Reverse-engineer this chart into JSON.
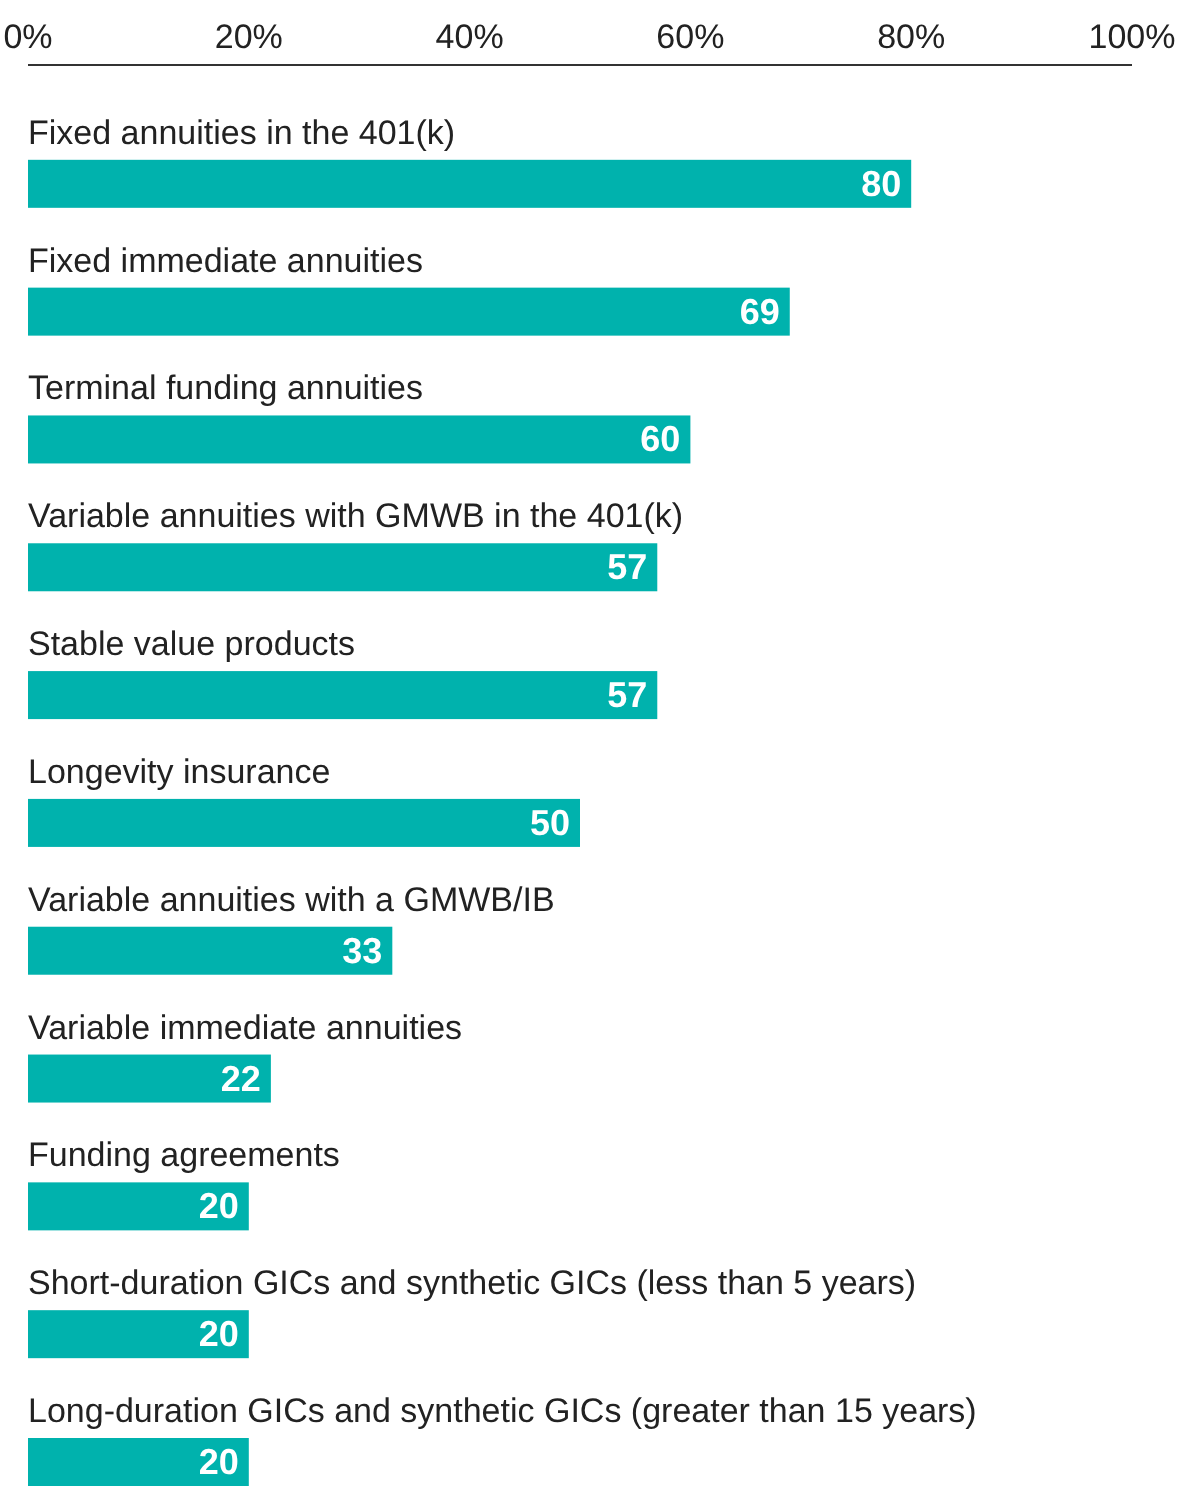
{
  "chart_data": {
    "type": "bar",
    "orientation": "horizontal",
    "categories": [
      "Fixed annuities in the 401(k)",
      "Fixed immediate annuities",
      "Terminal funding annuities",
      "Variable annuities with GMWB in the 401(k)",
      "Stable value products",
      "Longevity insurance",
      "Variable annuities with a GMWB/IB",
      "Variable immediate annuities",
      "Funding agreements",
      "Short-duration GICs and synthetic GICs (less than 5 years)",
      "Long-duration GICs and synthetic GICs (greater than 15 years)"
    ],
    "values": [
      80,
      69,
      60,
      57,
      57,
      50,
      33,
      22,
      20,
      20,
      20
    ],
    "color": "#00b2ad",
    "xlim": [
      0,
      100
    ],
    "xticks": [
      {
        "value": 0,
        "label": "0%"
      },
      {
        "value": 20,
        "label": "20%"
      },
      {
        "value": 40,
        "label": "40%"
      },
      {
        "value": 60,
        "label": "60%"
      },
      {
        "value": 80,
        "label": "80%"
      },
      {
        "value": 100,
        "label": "100%"
      }
    ],
    "data_labels": true,
    "grid": false
  }
}
